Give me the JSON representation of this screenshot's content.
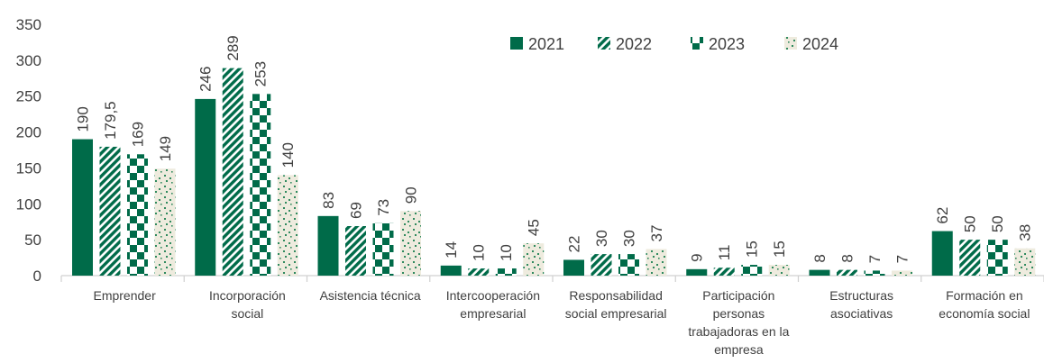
{
  "chart_data": {
    "type": "bar",
    "title": "",
    "xlabel": "",
    "ylabel": "",
    "ylim": [
      0,
      350
    ],
    "yticks": [
      0,
      50,
      100,
      150,
      200,
      250,
      300,
      350
    ],
    "ytick_labels": [
      "0",
      "50",
      "100",
      "150",
      "200",
      "250",
      "300",
      "350"
    ],
    "grid": false,
    "legend_position": "top-right",
    "categories": [
      [
        "Emprender"
      ],
      [
        "Incorporación",
        "social"
      ],
      [
        "Asistencia técnica"
      ],
      [
        "Intercooperación",
        "empresarial"
      ],
      [
        "Responsabilidad",
        "social empresarial"
      ],
      [
        "Participación",
        "personas",
        "trabajadoras en la",
        "empresa"
      ],
      [
        "Estructuras",
        "asociativas"
      ],
      [
        "Formación en",
        "economía social"
      ]
    ],
    "series": [
      {
        "name": "2021",
        "color": "#006B49",
        "pattern": "solid",
        "values": [
          190,
          246,
          83,
          14,
          22,
          9,
          8,
          62
        ],
        "labels": [
          "190",
          "246",
          "83",
          "14",
          "22",
          "9",
          "8",
          "62"
        ]
      },
      {
        "name": "2022",
        "color": "#006B49",
        "pattern": "diagonal-stripes",
        "values": [
          179.5,
          289,
          69,
          10,
          30,
          11,
          8,
          50
        ],
        "labels": [
          "179,5",
          "289",
          "69",
          "10",
          "30",
          "11",
          "8",
          "50"
        ]
      },
      {
        "name": "2023",
        "color": "#006B49",
        "pattern": "checkerboard",
        "values": [
          169,
          253,
          73,
          10,
          30,
          15,
          7,
          50
        ],
        "labels": [
          "169",
          "253",
          "73",
          "10",
          "30",
          "15",
          "7",
          "50"
        ]
      },
      {
        "name": "2024",
        "color": "#006B49",
        "pattern": "dotted-confetti",
        "values": [
          149,
          140,
          90,
          45,
          37,
          15,
          7,
          38
        ],
        "labels": [
          "149",
          "140",
          "90",
          "45",
          "37",
          "15",
          "7",
          "38"
        ]
      }
    ]
  }
}
